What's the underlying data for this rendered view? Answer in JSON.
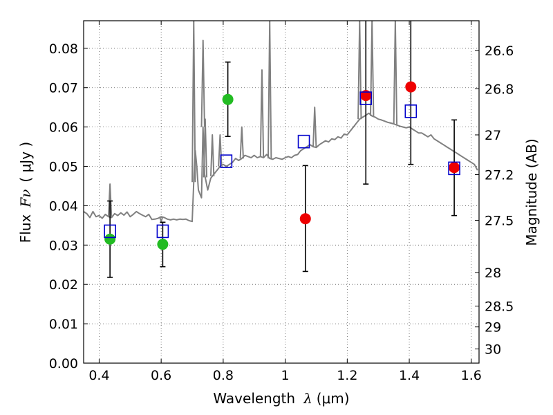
{
  "chart_data": {
    "type": "scatter",
    "title": "",
    "xlabel_prefix": "Wavelength",
    "xlabel_symbol": "λ",
    "xlabel_unit": "(μm)",
    "ylabel_prefix": "Flux",
    "ylabel_symbol": "Fν",
    "ylabel_unit": "( μJy )",
    "y2label": "Magnitude (AB)",
    "xlim": [
      0.35,
      1.625
    ],
    "ylim": [
      0.0,
      0.087
    ],
    "grid": true,
    "x_ticks": [
      0.4,
      0.6,
      0.8,
      1.0,
      1.2,
      1.4,
      1.6
    ],
    "x_tick_labels": [
      "0.4",
      "0.6",
      "0.8",
      "1",
      "1.2",
      "1.4",
      "1.6"
    ],
    "y_ticks": [
      0.0,
      0.01,
      0.02,
      0.03,
      0.04,
      0.05,
      0.06,
      0.07,
      0.08
    ],
    "y_tick_labels": [
      "0.00",
      "0.01",
      "0.02",
      "0.03",
      "0.04",
      "0.05",
      "0.06",
      "0.07",
      "0.08"
    ],
    "y2_ticks": [
      {
        "label": "26.6",
        "flux": 0.0794
      },
      {
        "label": "26.8",
        "flux": 0.0697
      },
      {
        "label": "27",
        "flux": 0.058
      },
      {
        "label": "27.2",
        "flux": 0.0479
      },
      {
        "label": "27.5",
        "flux": 0.0363
      },
      {
        "label": "28",
        "flux": 0.023
      },
      {
        "label": "28.5",
        "flux": 0.0145
      },
      {
        "label": "29",
        "flux": 0.0092
      },
      {
        "label": "30",
        "flux": 0.0036
      }
    ],
    "colors": {
      "spectrum": "#808080",
      "green": "#22bb22",
      "red": "#ee0000",
      "model": "#0000cc",
      "errorbar": "#000000",
      "grid": "#555555"
    },
    "spectrum": {
      "name": "",
      "x": [
        0.35,
        0.36,
        0.37,
        0.38,
        0.39,
        0.4,
        0.41,
        0.42,
        0.43,
        0.44,
        0.45,
        0.46,
        0.47,
        0.48,
        0.49,
        0.5,
        0.51,
        0.52,
        0.53,
        0.54,
        0.55,
        0.56,
        0.57,
        0.58,
        0.59,
        0.6,
        0.61,
        0.62,
        0.63,
        0.64,
        0.65,
        0.66,
        0.67,
        0.68,
        0.69,
        0.7,
        0.703,
        0.706,
        0.71,
        0.715,
        0.72,
        0.73,
        0.735,
        0.74,
        0.75,
        0.76,
        0.77,
        0.78,
        0.79,
        0.8,
        0.81,
        0.82,
        0.83,
        0.84,
        0.85,
        0.86,
        0.87,
        0.88,
        0.89,
        0.9,
        0.91,
        0.92,
        0.93,
        0.94,
        0.95,
        0.96,
        0.97,
        0.98,
        0.99,
        1.0,
        1.01,
        1.02,
        1.03,
        1.04,
        1.05,
        1.06,
        1.07,
        1.08,
        1.09,
        1.1,
        1.11,
        1.12,
        1.13,
        1.14,
        1.15,
        1.16,
        1.17,
        1.18,
        1.19,
        1.2,
        1.21,
        1.22,
        1.23,
        1.24,
        1.25,
        1.26,
        1.27,
        1.28,
        1.29,
        1.3,
        1.31,
        1.32,
        1.33,
        1.34,
        1.35,
        1.36,
        1.37,
        1.38,
        1.39,
        1.4,
        1.41,
        1.42,
        1.43,
        1.44,
        1.45,
        1.46,
        1.47,
        1.48,
        1.49,
        1.5,
        1.51,
        1.52,
        1.53,
        1.54,
        1.55,
        1.56,
        1.57,
        1.58,
        1.59,
        1.6,
        1.61,
        1.62
      ],
      "y": [
        0.0385,
        0.038,
        0.037,
        0.0385,
        0.0372,
        0.0375,
        0.0368,
        0.0378,
        0.0372,
        0.037,
        0.038,
        0.0375,
        0.0382,
        0.0376,
        0.0384,
        0.0372,
        0.0378,
        0.0385,
        0.038,
        0.0376,
        0.0372,
        0.0378,
        0.0365,
        0.0366,
        0.0368,
        0.0372,
        0.037,
        0.0366,
        0.0364,
        0.0366,
        0.0364,
        0.0366,
        0.0365,
        0.0366,
        0.0362,
        0.036,
        0.042,
        0.048,
        0.054,
        0.05,
        0.044,
        0.042,
        0.06,
        0.048,
        0.044,
        0.047,
        0.048,
        0.049,
        0.05,
        0.0505,
        0.05,
        0.0505,
        0.051,
        0.052,
        0.0515,
        0.052,
        0.0528,
        0.0525,
        0.0522,
        0.0528,
        0.0522,
        0.0525,
        0.0522,
        0.053,
        0.052,
        0.0518,
        0.0522,
        0.052,
        0.0518,
        0.0522,
        0.0525,
        0.0522,
        0.0528,
        0.053,
        0.054,
        0.0545,
        0.055,
        0.0555,
        0.055,
        0.0548,
        0.0555,
        0.056,
        0.0565,
        0.0562,
        0.057,
        0.0568,
        0.0575,
        0.0572,
        0.0582,
        0.058,
        0.059,
        0.06,
        0.061,
        0.062,
        0.0625,
        0.063,
        0.0635,
        0.0628,
        0.0625,
        0.062,
        0.0618,
        0.0615,
        0.0612,
        0.061,
        0.0608,
        0.0605,
        0.0602,
        0.06,
        0.0598,
        0.06,
        0.0595,
        0.059,
        0.0585,
        0.0585,
        0.058,
        0.0575,
        0.058,
        0.057,
        0.0565,
        0.056,
        0.0555,
        0.055,
        0.0545,
        0.054,
        0.0535,
        0.053,
        0.0525,
        0.052,
        0.0515,
        0.051,
        0.0505,
        0.049
      ],
      "emission_lines": [
        {
          "x": 0.435,
          "peak": 0.0455
        },
        {
          "x": 0.6,
          "peak": 0.036
        },
        {
          "x": 0.705,
          "peak": 0.087
        },
        {
          "x": 0.735,
          "peak": 0.082
        },
        {
          "x": 0.742,
          "peak": 0.062
        },
        {
          "x": 0.765,
          "peak": 0.058
        },
        {
          "x": 0.79,
          "peak": 0.058
        },
        {
          "x": 0.86,
          "peak": 0.06
        },
        {
          "x": 0.925,
          "peak": 0.0745
        },
        {
          "x": 0.95,
          "peak": 0.087
        },
        {
          "x": 1.095,
          "peak": 0.065
        },
        {
          "x": 1.24,
          "peak": 0.087
        },
        {
          "x": 1.28,
          "peak": 0.087
        },
        {
          "x": 1.355,
          "peak": 0.087
        }
      ]
    },
    "series": [
      {
        "name": "",
        "marker": "circle",
        "color": "green",
        "points": [
          {
            "x": 0.435,
            "y": 0.0315,
            "err_low": 0.0218,
            "err_high": 0.0412
          },
          {
            "x": 0.605,
            "y": 0.0302,
            "err_low": 0.0245,
            "err_high": 0.0358
          },
          {
            "x": 0.815,
            "y": 0.067,
            "err_low": 0.0576,
            "err_high": 0.0765
          }
        ]
      },
      {
        "name": "",
        "marker": "circle",
        "color": "red",
        "points": [
          {
            "x": 1.065,
            "y": 0.0367,
            "err_low": 0.0233,
            "err_high": 0.0502
          },
          {
            "x": 1.26,
            "y": 0.068,
            "err_low": 0.0455,
            "err_high": 0.087
          },
          {
            "x": 1.405,
            "y": 0.0702,
            "err_low": 0.0505,
            "err_high": 0.087
          },
          {
            "x": 1.545,
            "y": 0.0497,
            "err_low": 0.0375,
            "err_high": 0.0618
          }
        ]
      },
      {
        "name": "",
        "marker": "open-square",
        "color": "model",
        "points": [
          {
            "x": 0.435,
            "y": 0.0335
          },
          {
            "x": 0.605,
            "y": 0.0335
          },
          {
            "x": 0.81,
            "y": 0.0513
          },
          {
            "x": 1.06,
            "y": 0.0563
          },
          {
            "x": 1.26,
            "y": 0.0673
          },
          {
            "x": 1.405,
            "y": 0.064
          },
          {
            "x": 1.545,
            "y": 0.0495
          }
        ]
      }
    ]
  }
}
